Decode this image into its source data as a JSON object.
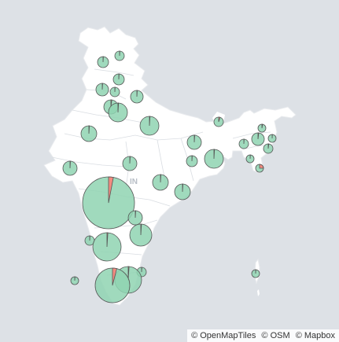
{
  "map": {
    "country_label": "IN",
    "colors": {
      "ocean": "#dde1e6",
      "land": "#ffffff",
      "border": "#d3d7dc",
      "pie_primary": "#8fd4b1",
      "pie_secondary": "#f28b80",
      "pie_stroke": "#555555"
    },
    "marker_type": "pie-chart",
    "marker_count": 29
  },
  "attribution": {
    "openmaptiles": "© OpenMapTiles",
    "osm": "© OSM",
    "mapbox": "© Mapbox"
  }
}
